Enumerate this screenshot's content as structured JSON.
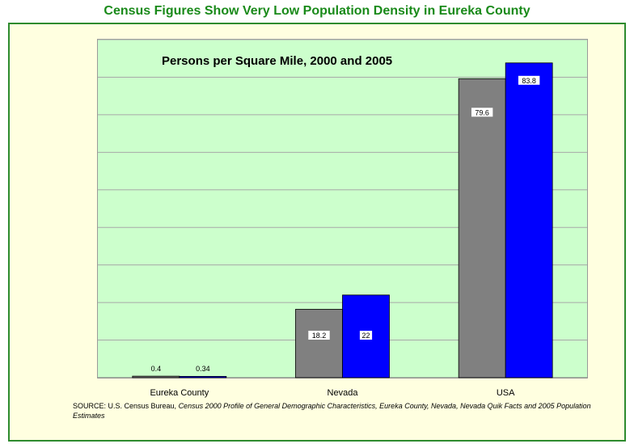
{
  "page_title": "Census Figures Show Very Low Population Density in Eureka County",
  "chart_data": {
    "type": "bar",
    "title": "Persons per Square Mile, 2000 and 2005",
    "xlabel": "",
    "ylabel": "",
    "categories": [
      "Eureka County",
      "Nevada",
      "USA"
    ],
    "series": [
      {
        "values": [
          0.4,
          18.2,
          79.6
        ],
        "labels": [
          "0.4",
          "18.2",
          "79.6"
        ],
        "color": "#808080"
      },
      {
        "values": [
          0.34,
          22,
          83.8
        ],
        "labels": [
          "0.34",
          "22",
          "83.8"
        ],
        "color": "#0000ff"
      }
    ],
    "ylim": [
      0,
      90
    ],
    "y_grid_step": 10,
    "grid": true,
    "legend": "none",
    "plot_background": "#ccffcc",
    "outer_background": "#ffffe0",
    "frame_color": "#2e8b2e"
  },
  "source": {
    "prefix": "SOURCE: U.S. Census Bureau, ",
    "italic": "Census 2000 Profile of General Demographic Characteristics, Eureka County, Nevada, Nevada Quik Facts and 2005 Population Estimates"
  }
}
